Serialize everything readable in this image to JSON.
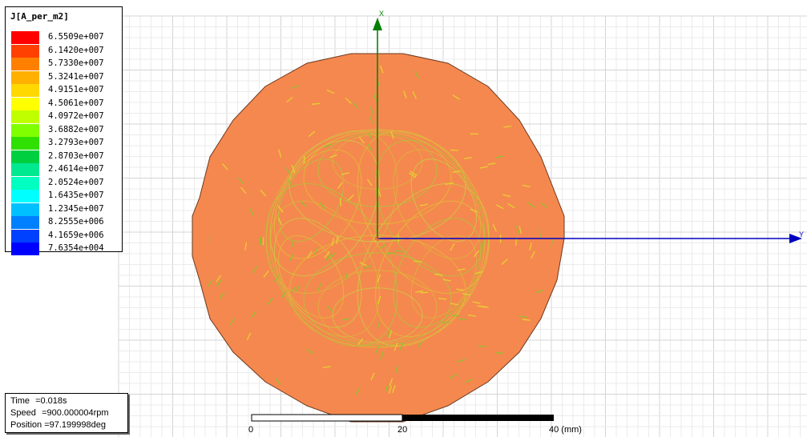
{
  "legend": {
    "title": "J[A_per_m2]",
    "entries": [
      {
        "value": "6.5509e+007",
        "color": "#ff0000"
      },
      {
        "value": "6.1420e+007",
        "color": "#ff4000"
      },
      {
        "value": "5.7330e+007",
        "color": "#ff8000"
      },
      {
        "value": "5.3241e+007",
        "color": "#ffb000"
      },
      {
        "value": "4.9151e+007",
        "color": "#ffd800"
      },
      {
        "value": "4.5061e+007",
        "color": "#ffff00"
      },
      {
        "value": "4.0972e+007",
        "color": "#c0ff00"
      },
      {
        "value": "3.6882e+007",
        "color": "#80ff00"
      },
      {
        "value": "3.2793e+007",
        "color": "#30e000"
      },
      {
        "value": "2.8703e+007",
        "color": "#00d040"
      },
      {
        "value": "2.4614e+007",
        "color": "#00e890"
      },
      {
        "value": "2.0524e+007",
        "color": "#00ffc0"
      },
      {
        "value": "1.6435e+007",
        "color": "#00ffff"
      },
      {
        "value": "1.2345e+007",
        "color": "#00c0ff"
      },
      {
        "value": "8.2555e+006",
        "color": "#0080ff"
      },
      {
        "value": "4.1659e+006",
        "color": "#0040ff"
      },
      {
        "value": "7.6354e+004",
        "color": "#0000ff"
      }
    ]
  },
  "info": {
    "time_label": "Time",
    "time_value": "=0.018s",
    "speed_label": "Speed",
    "speed_value": "=900.000004rpm",
    "position_label": "Position",
    "position_value": "=97.199998deg"
  },
  "scale": {
    "ticks": [
      "0",
      "20",
      "40 (mm)"
    ]
  },
  "axes": {
    "x_label": "X",
    "y_label": "Y",
    "x_color": "#008000",
    "y_color": "#0000c0"
  },
  "colors": {
    "disk": "#f5884f",
    "grid": "#d4d4d4",
    "grid_minor": "#ebebeb"
  }
}
